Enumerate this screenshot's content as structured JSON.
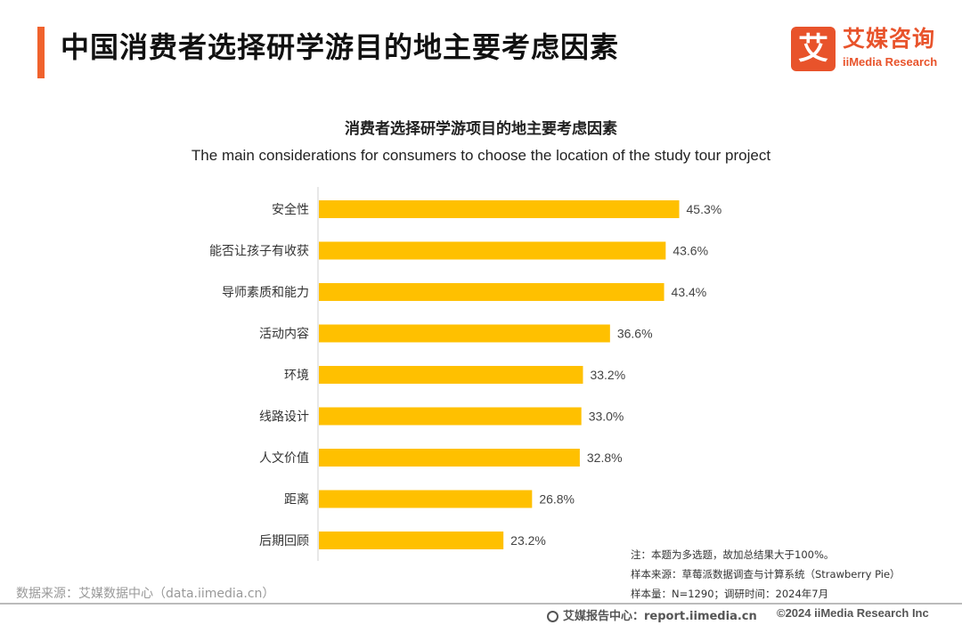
{
  "header": {
    "title": "中国消费者选择研学游目的地主要考虑因素",
    "logo_cn": "艾媒咨询",
    "logo_en": "iiMedia Research",
    "logo_mark": "艾"
  },
  "chart_data": {
    "type": "bar",
    "orientation": "horizontal",
    "title": "消费者选择研学游项目的地主要考虑因素",
    "subtitle": "The main considerations for consumers to choose the location of the study tour project",
    "categories": [
      "安全性",
      "能否让孩子有收获",
      "导师素质和能力",
      "活动内容",
      "环境",
      "线路设计",
      "人文价值",
      "距离",
      "后期回顾"
    ],
    "values": [
      45.3,
      43.6,
      43.4,
      36.6,
      33.2,
      33.0,
      32.8,
      26.8,
      23.2
    ],
    "labels": [
      "45.3%",
      "43.6%",
      "43.4%",
      "36.6%",
      "33.2%",
      "33.0%",
      "32.8%",
      "26.8%",
      "23.2%"
    ],
    "xlim": [
      0,
      50
    ],
    "bar_color": "#ffc000",
    "grid": false,
    "legend": "none"
  },
  "notes": {
    "note1": "注：本题为多选题，故加总结果大于100%。",
    "note2": "样本来源：草莓派数据调查与计算系统（Strawberry Pie）",
    "note3": "样本量：N=1290；调研时间：2024年7月"
  },
  "source": "数据来源：艾媒数据中心（data.iimedia.cn）",
  "footer": {
    "center": "艾媒报告中心：report.iimedia.cn",
    "right": "©2024  iiMedia Research  Inc"
  },
  "colors": {
    "accent": "#f0622d",
    "brand": "#e8532b",
    "bar": "#ffc000"
  }
}
